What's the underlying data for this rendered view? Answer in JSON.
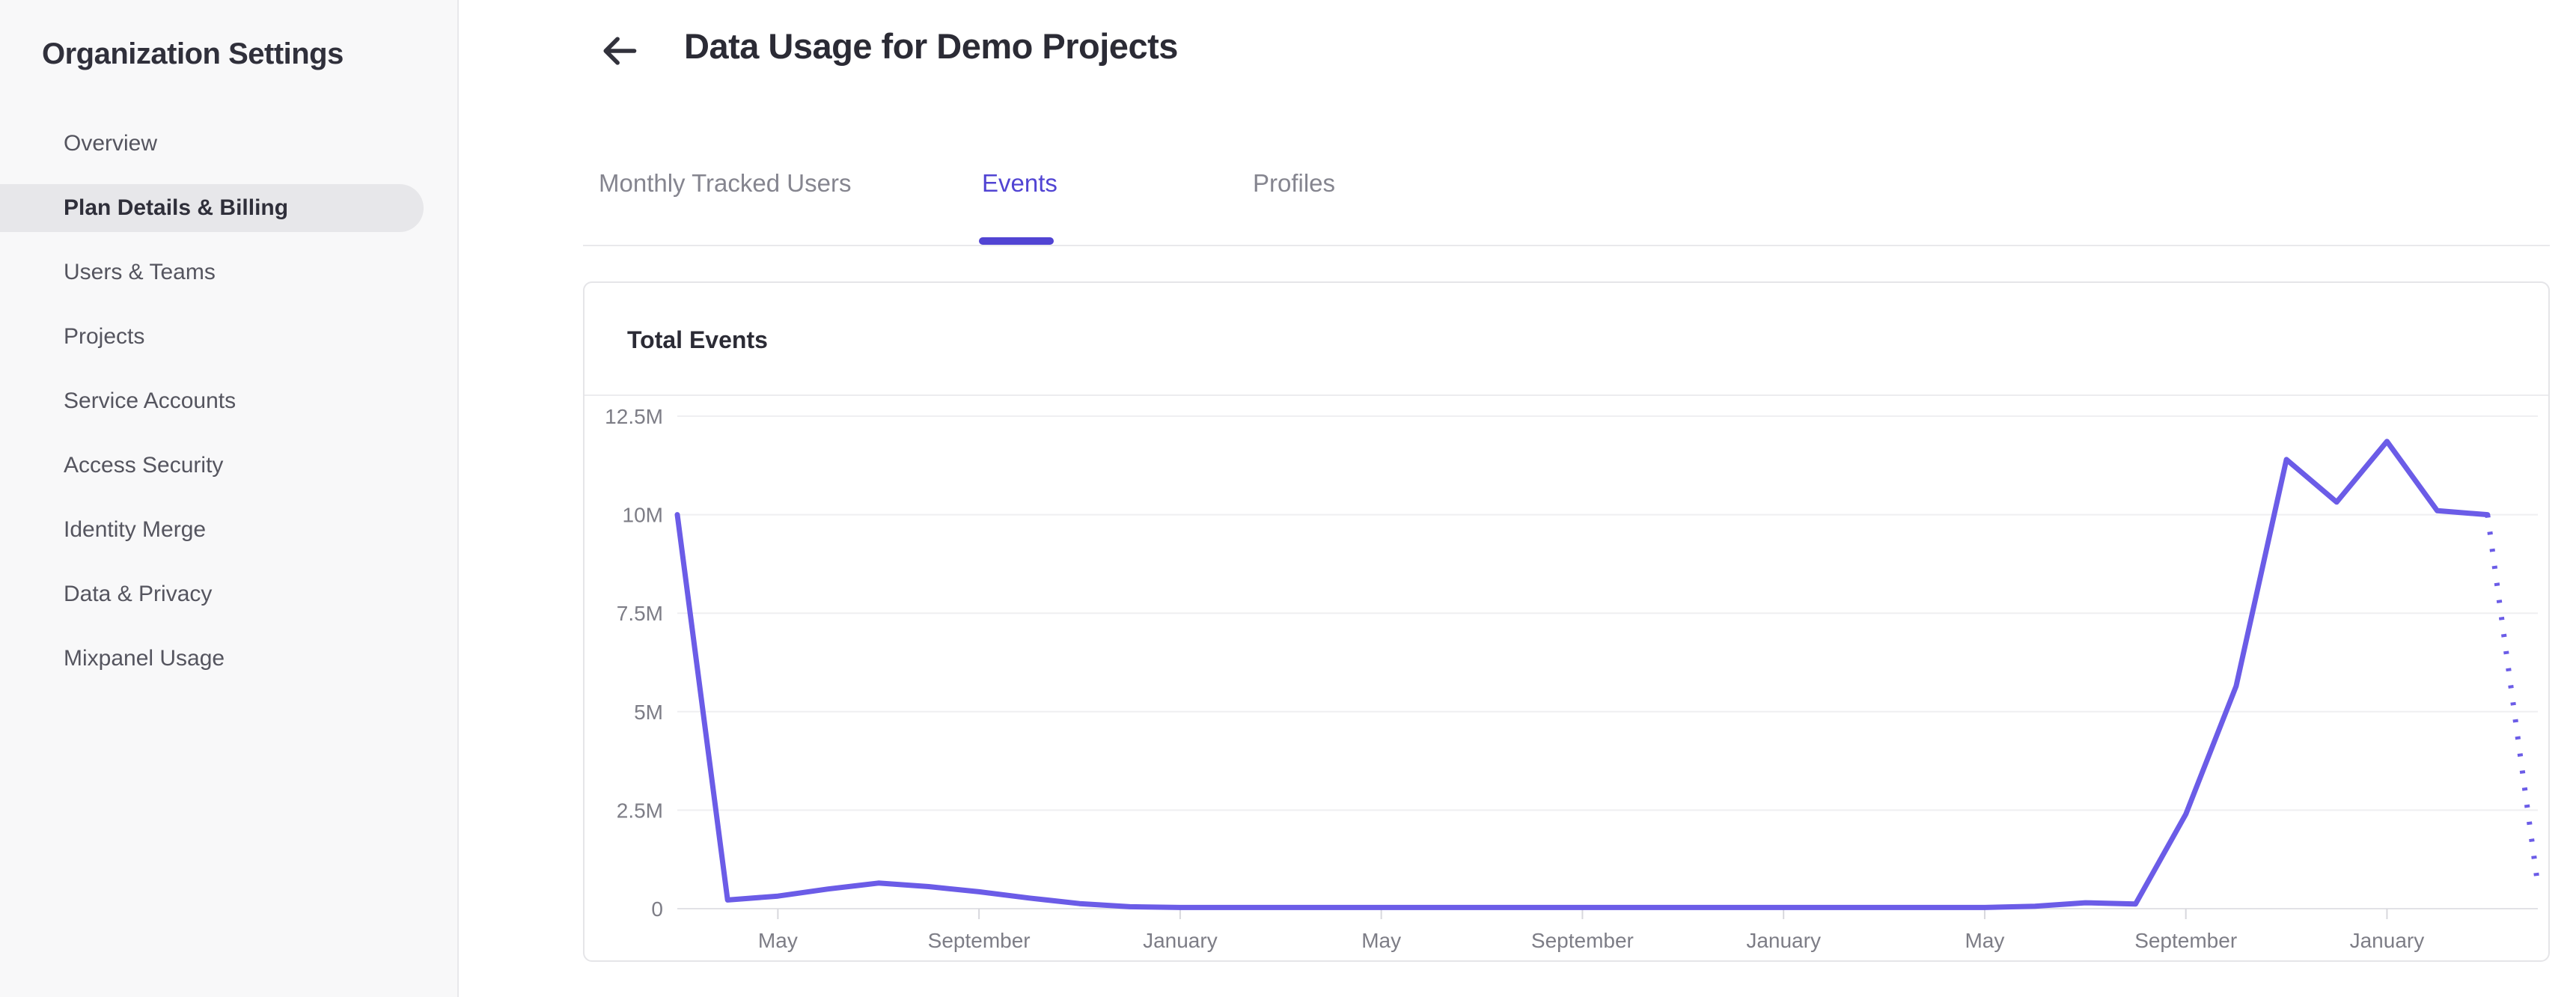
{
  "sidebar": {
    "title": "Organization Settings",
    "items": [
      {
        "label": "Overview",
        "active": false
      },
      {
        "label": "Plan Details & Billing",
        "active": true
      },
      {
        "label": "Users & Teams",
        "active": false
      },
      {
        "label": "Projects",
        "active": false
      },
      {
        "label": "Service Accounts",
        "active": false
      },
      {
        "label": "Access Security",
        "active": false
      },
      {
        "label": "Identity Merge",
        "active": false
      },
      {
        "label": "Data & Privacy",
        "active": false
      },
      {
        "label": "Mixpanel Usage",
        "active": false
      }
    ]
  },
  "header": {
    "back_icon": "arrow-left-icon",
    "title": "Data Usage for Demo Projects"
  },
  "tabs": [
    {
      "label": "Monthly Tracked Users",
      "active": false
    },
    {
      "label": "Events",
      "active": true
    },
    {
      "label": "Profiles",
      "active": false
    }
  ],
  "card": {
    "title": "Total Events"
  },
  "colors": {
    "accent_tab": "#5144d3",
    "chart_line": "#6b5ce7",
    "gridline": "#efeff1",
    "axis_line": "#e2e2e6",
    "tick_mark": "#d8d8dd",
    "tick_label": "#7d7d86",
    "sidebar_bg": "#f8f8f9",
    "active_pill_bg": "#e7e7ea"
  },
  "chart_data": {
    "type": "line",
    "title": "Total Events",
    "xlabel": "",
    "ylabel": "",
    "ylim": [
      0,
      12500000
    ],
    "grid": true,
    "legend": "none",
    "y_ticks": [
      "0",
      "2.5M",
      "5M",
      "7.5M",
      "10M",
      "12.5M"
    ],
    "y_tick_values": [
      0,
      2500000,
      5000000,
      7500000,
      10000000,
      12500000
    ],
    "x_tick_labels": [
      "May",
      "September",
      "January",
      "May",
      "September",
      "January",
      "May",
      "September",
      "January"
    ],
    "x_tick_indices": [
      2,
      6,
      10,
      14,
      18,
      22,
      26,
      30,
      34
    ],
    "series": [
      {
        "name": "Total Events",
        "interval": "monthly",
        "values": [
          10000000,
          220000,
          320000,
          500000,
          650000,
          560000,
          430000,
          270000,
          130000,
          50000,
          30000,
          30000,
          30000,
          30000,
          30000,
          30000,
          30000,
          30000,
          30000,
          30000,
          30000,
          30000,
          30000,
          30000,
          30000,
          30000,
          30000,
          60000,
          150000,
          120000,
          2400000,
          5650000,
          11400000,
          10320000,
          11860000,
          10100000,
          10000000,
          600000
        ],
        "solid_until_index": 36,
        "dotted_projection_tail": true
      }
    ]
  }
}
